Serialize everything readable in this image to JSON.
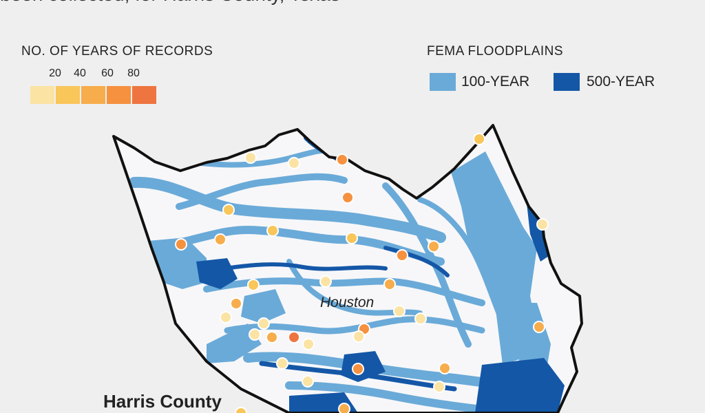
{
  "subtitle_fragment": "been collected, for Harris County, Texas",
  "years_legend": {
    "heading": "NO. OF YEARS OF RECORDS",
    "ticks": [
      "20",
      "40",
      "60",
      "80"
    ],
    "colors": [
      "#fbe3a4",
      "#f9c65a",
      "#f7ad4c",
      "#f6913f",
      "#ee7540"
    ]
  },
  "floodplain_legend": {
    "heading": "FEMA FLOODPLAINS",
    "items": [
      {
        "label": "100-YEAR",
        "color": "#6aaad8"
      },
      {
        "label": "500-YEAR",
        "color": "#1457a7"
      }
    ]
  },
  "map": {
    "city_label": "Houston",
    "county_label": "Harris County",
    "background_color": "#f7f7f9",
    "outline_color": "#111111"
  },
  "gauges": [
    {
      "years_class": 0
    },
    {
      "years_class": 0
    },
    {
      "years_class": 3
    },
    {
      "years_class": 1
    },
    {
      "years_class": 3
    },
    {
      "years_class": 1
    },
    {
      "years_class": 1
    },
    {
      "years_class": 2
    },
    {
      "years_class": 3
    },
    {
      "years_class": 1
    },
    {
      "years_class": 2
    },
    {
      "years_class": 3
    },
    {
      "years_class": 0
    },
    {
      "years_class": 1
    },
    {
      "years_class": 0
    },
    {
      "years_class": 2
    },
    {
      "years_class": 2
    },
    {
      "years_class": 0
    },
    {
      "years_class": 0
    },
    {
      "years_class": 0
    },
    {
      "years_class": 0
    },
    {
      "years_class": 0
    },
    {
      "years_class": 3
    },
    {
      "years_class": 2
    },
    {
      "years_class": 0
    },
    {
      "years_class": 4
    },
    {
      "years_class": 0
    },
    {
      "years_class": 2
    },
    {
      "years_class": 0
    },
    {
      "years_class": 0
    },
    {
      "years_class": 3
    },
    {
      "years_class": 2
    },
    {
      "years_class": 0
    },
    {
      "years_class": 2
    },
    {
      "years_class": 1
    }
  ]
}
